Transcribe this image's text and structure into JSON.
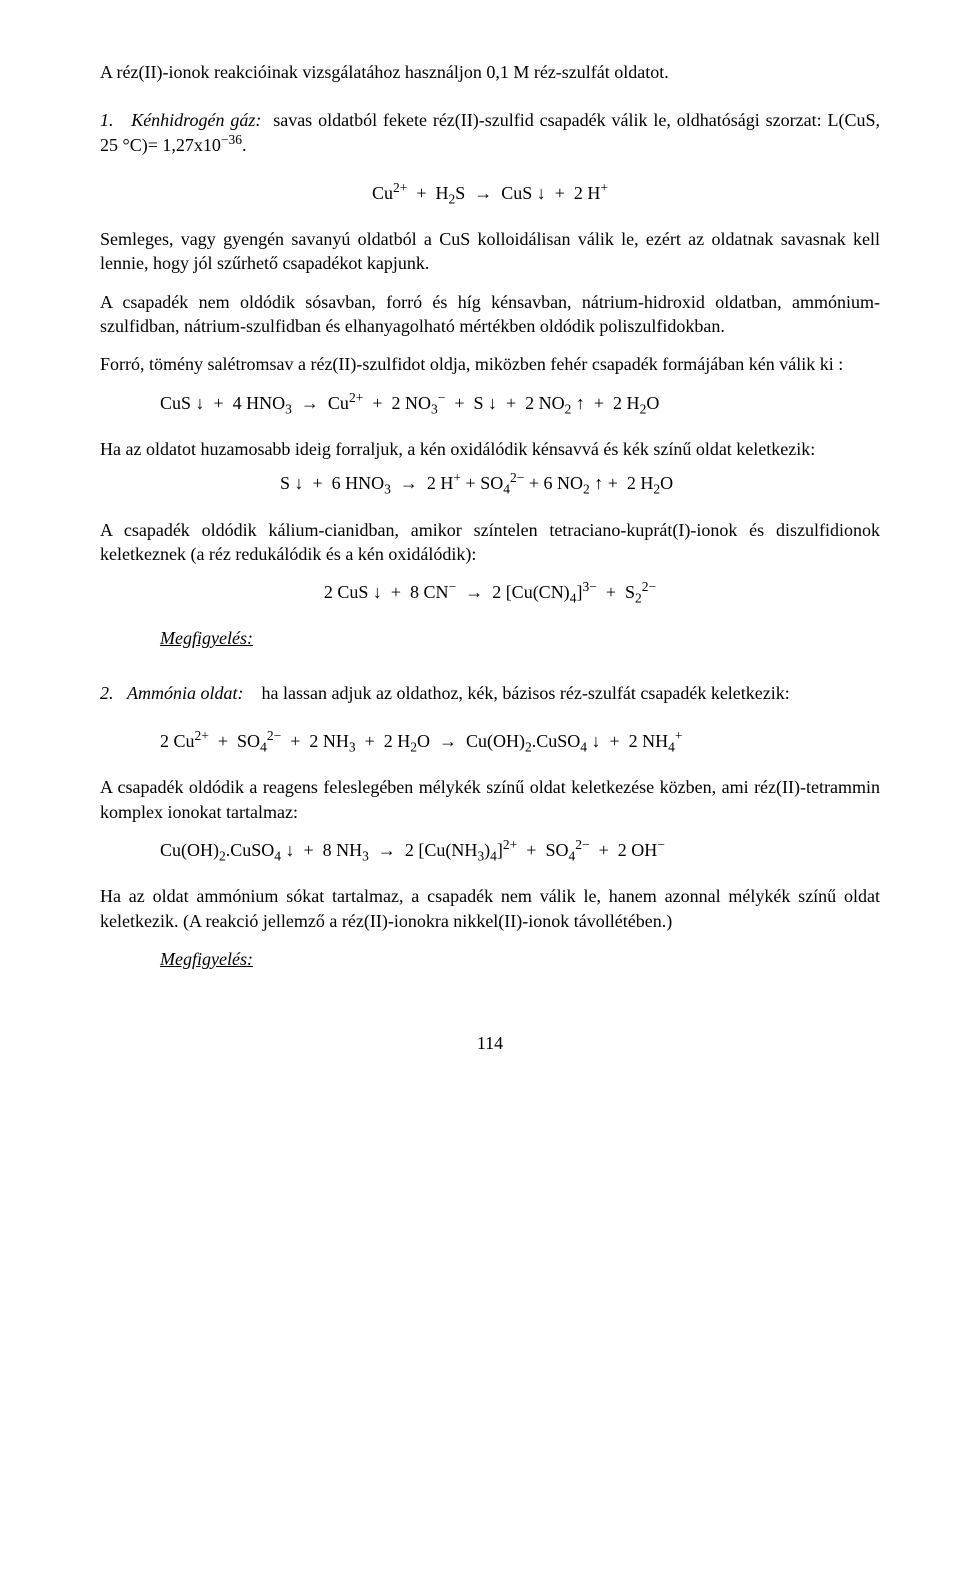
{
  "intro": "A réz(II)-ionok reakcióinak vizsgálatához használjon 0,1 M réz-szulfát oldatot.",
  "s1": {
    "num": "1.",
    "label": "Kénhidrogén gáz:",
    "text": "savas oldatból fekete réz(II)-szulfid csapadék válik le, oldhatósági szorzat: L(CuS, 25 °C)= 1,27x10",
    "exp": "−36",
    "p1": "Semleges, vagy gyengén savanyú oldatból a CuS kolloidálisan válik le, ezért az oldatnak savasnak kell lennie, hogy jól szűrhető csapadékot kapjunk.",
    "p2": "A csapadék nem oldódik sósavban, forró és híg kénsavban, nátrium-hidroxid oldatban, ammónium-szulfidban, nátrium-szulfidban és elhanyagolható mértékben oldódik poliszulfidokban.",
    "p3": "Forró, tömény salétromsav a réz(II)-szulfidot oldja, miközben fehér csapadék formájában kén válik ki :",
    "p4": "Ha az oldatot huzamosabb ideig forraljuk, a kén oxidálódik kénsavvá és kék színű oldat keletkezik:",
    "p5": "A csapadék oldódik kálium-cianidban, amikor színtelen tetraciano-kuprát(I)-ionok és diszulfidionok keletkeznek (a réz redukálódik és a kén oxidálódik):",
    "obs": "Megfigyelés:"
  },
  "s2": {
    "num": "2.",
    "label": "Ammónia oldat:",
    "text1": "ha lassan adjuk az oldathoz, kék, bázisos réz-szulfát csapadék keletkezik:",
    "p1": "A csapadék oldódik a reagens feleslegében mélykék színű oldat keletkezése közben, ami réz(II)-tetrammin komplex ionokat tartalmaz:",
    "p2": "Ha az oldat ammónium sókat tartalmaz, a csapadék nem válik le, hanem azonnal mélykék színű oldat keletkezik. (A reakció jellemző a réz(II)-ionokra nikkel(II)-ionok távollétében.)",
    "obs": "Megfigyelés:"
  },
  "pagenum": "114"
}
